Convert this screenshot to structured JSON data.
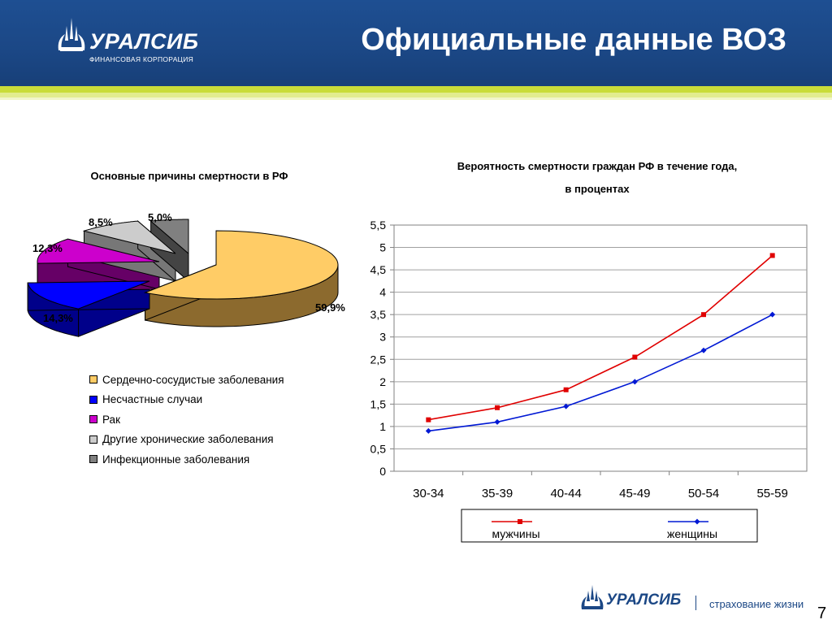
{
  "header": {
    "title": "Официальные данные ВОЗ",
    "logo_word": "УРАЛСИБ",
    "logo_sub": "ФИНАНСОВАЯ КОРПОРАЦИЯ"
  },
  "footer": {
    "logo_word": "УРАЛСИБ",
    "text": "страхование жизни",
    "page_number": "7"
  },
  "colors": {
    "header_bg": "#1b4785",
    "men_series": "#e00000",
    "women_series": "#0018d4"
  },
  "chart_data": [
    {
      "type": "pie",
      "title": "Основные причины смертности в РФ",
      "slices": [
        {
          "name": "Сердечно-сосудистые заболевания",
          "value": 59.9,
          "label": "59,9%",
          "color": "#ffcc66",
          "side_color": "#8c6a2e"
        },
        {
          "name": "Несчастные случаи",
          "value": 14.3,
          "label": "14,3%",
          "color": "#0000ff",
          "side_color": "#00008a"
        },
        {
          "name": "Рак",
          "value": 12.3,
          "label": "12,3%",
          "color": "#cc00cc",
          "side_color": "#660066"
        },
        {
          "name": "Другие хронические заболевания",
          "value": 8.5,
          "label": "8,5%",
          "color": "#cccccc",
          "side_color": "#777777"
        },
        {
          "name": "Инфекционные заболевания",
          "value": 5.0,
          "label": "5,0%",
          "color": "#808080",
          "side_color": "#444444"
        }
      ],
      "legend": "bottom"
    },
    {
      "type": "line",
      "title": "Вероятность смертности граждан РФ в течение года,",
      "subtitle": "в процентах",
      "categories": [
        "30-34",
        "35-39",
        "40-44",
        "45-49",
        "50-54",
        "55-59"
      ],
      "series": [
        {
          "name": "мужчины",
          "values": [
            1.15,
            1.42,
            1.82,
            2.55,
            3.5,
            4.82
          ],
          "color": "#e00000",
          "marker": "square"
        },
        {
          "name": "женщины",
          "values": [
            0.9,
            1.1,
            1.45,
            2.0,
            2.7,
            3.5
          ],
          "color": "#0018d4",
          "marker": "diamond"
        }
      ],
      "ylim": [
        0,
        5.5
      ],
      "yticks": [
        "0",
        "0,5",
        "1",
        "1,5",
        "2",
        "2,5",
        "3",
        "3,5",
        "4",
        "4,5",
        "5",
        "5,5"
      ],
      "grid": true,
      "legend": "bottom"
    }
  ]
}
